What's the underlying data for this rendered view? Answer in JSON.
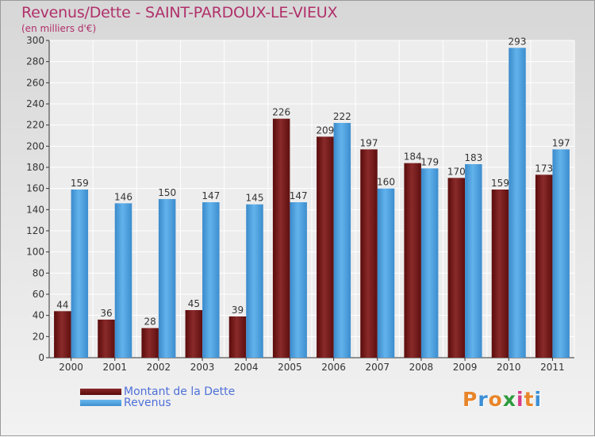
{
  "title": "Revenus/Dette - SAINT-PARDOUX-LE-VIEUX",
  "subtitle": "(en milliers d'€)",
  "colors": {
    "title": "#b0306a",
    "dette": "#7a1a1a",
    "revenus": "#4aa3e3",
    "legend_text": "#4f70d8"
  },
  "legend": {
    "dette_label": "Montant de la Dette",
    "revenus_label": "Revenus"
  },
  "logo": {
    "text": "Proxiti",
    "letter_colors": [
      "#e8852a",
      "#3c8fd6",
      "#e8852a",
      "#2f9a3e",
      "#d63c8a",
      "#e8852a",
      "#3c8fd6"
    ]
  },
  "chart_data": {
    "type": "bar",
    "categories": [
      "2000",
      "2001",
      "2002",
      "2003",
      "2004",
      "2005",
      "2006",
      "2007",
      "2008",
      "2009",
      "2010",
      "2011"
    ],
    "series": [
      {
        "name": "Montant de la Dette",
        "values": [
          44,
          36,
          28,
          45,
          39,
          226,
          209,
          197,
          184,
          170,
          159,
          173
        ]
      },
      {
        "name": "Revenus",
        "values": [
          159,
          146,
          150,
          147,
          145,
          147,
          222,
          160,
          179,
          183,
          293,
          197
        ]
      }
    ],
    "ylim": [
      0,
      300
    ],
    "yticks": [
      0,
      20,
      40,
      60,
      80,
      100,
      120,
      140,
      160,
      180,
      200,
      220,
      240,
      260,
      280,
      300
    ],
    "grid": true,
    "legend_position": "bottom-left"
  }
}
